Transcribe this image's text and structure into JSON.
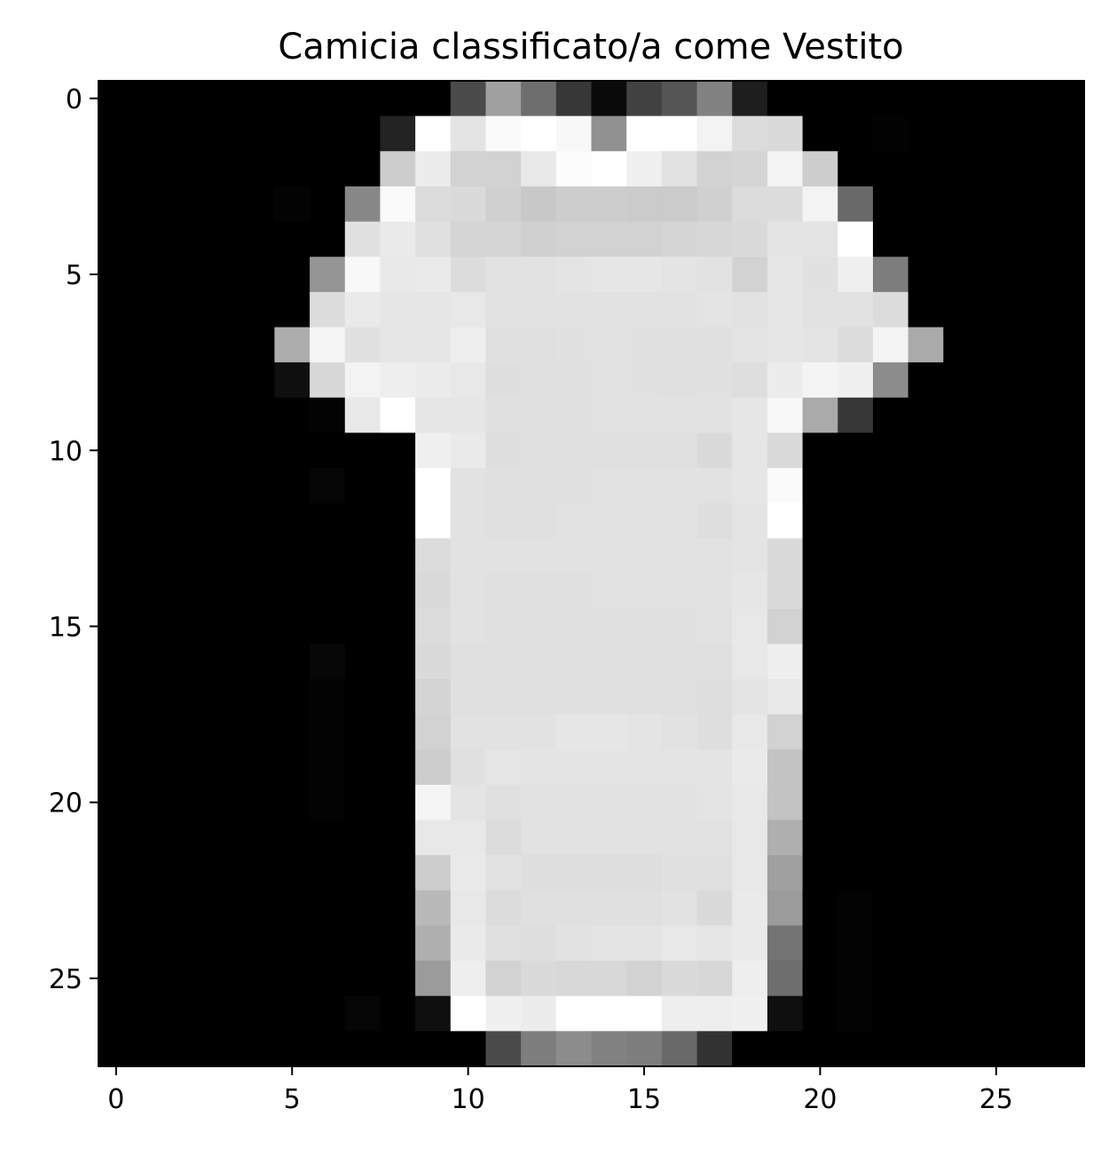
{
  "chart_data": {
    "type": "heatmap",
    "title": "Camicia classificato/a come Vestito",
    "xlabel": "",
    "ylabel": "",
    "colormap": "gray",
    "value_range": [
      0,
      255
    ],
    "grid": false,
    "x_ticks": [
      "0",
      "5",
      "10",
      "15",
      "20",
      "25"
    ],
    "y_ticks": [
      "0",
      "5",
      "10",
      "15",
      "20",
      "25"
    ],
    "xlim": [
      -0.5,
      27.5
    ],
    "ylim": [
      27.5,
      -0.5
    ],
    "pixels": [
      [
        0,
        0,
        0,
        0,
        0,
        0,
        0,
        0,
        0,
        0,
        75,
        160,
        110,
        55,
        10,
        65,
        85,
        130,
        30,
        0,
        0,
        0,
        0,
        0,
        0,
        0,
        0,
        0
      ],
      [
        0,
        0,
        0,
        0,
        0,
        0,
        0,
        0,
        35,
        255,
        228,
        250,
        255,
        248,
        145,
        255,
        255,
        243,
        220,
        218,
        0,
        0,
        2,
        0,
        0,
        0,
        0,
        0
      ],
      [
        0,
        0,
        0,
        0,
        0,
        0,
        0,
        0,
        205,
        236,
        210,
        210,
        232,
        252,
        255,
        240,
        226,
        210,
        213,
        243,
        205,
        0,
        0,
        0,
        0,
        0,
        0,
        0
      ],
      [
        0,
        0,
        0,
        0,
        0,
        3,
        0,
        135,
        250,
        220,
        218,
        208,
        200,
        205,
        205,
        203,
        203,
        208,
        220,
        220,
        243,
        105,
        0,
        0,
        0,
        0,
        0,
        0
      ],
      [
        0,
        0,
        0,
        0,
        0,
        0,
        0,
        225,
        234,
        225,
        213,
        213,
        208,
        210,
        210,
        210,
        213,
        215,
        218,
        228,
        228,
        255,
        0,
        0,
        0,
        0,
        0,
        0
      ],
      [
        0,
        0,
        0,
        0,
        0,
        0,
        148,
        248,
        232,
        234,
        220,
        226,
        226,
        228,
        230,
        230,
        228,
        226,
        210,
        230,
        225,
        240,
        125,
        0,
        0,
        0,
        0,
        0
      ],
      [
        0,
        0,
        0,
        0,
        0,
        0,
        220,
        234,
        230,
        230,
        232,
        226,
        226,
        226,
        226,
        226,
        226,
        228,
        226,
        230,
        226,
        226,
        220,
        0,
        0,
        0,
        0,
        0
      ],
      [
        0,
        0,
        0,
        0,
        0,
        173,
        245,
        225,
        230,
        230,
        238,
        224,
        224,
        225,
        226,
        225,
        224,
        224,
        228,
        230,
        228,
        220,
        244,
        170,
        0,
        0,
        0,
        0
      ],
      [
        0,
        0,
        0,
        0,
        0,
        15,
        215,
        243,
        238,
        236,
        232,
        222,
        224,
        224,
        226,
        225,
        224,
        225,
        222,
        236,
        244,
        240,
        140,
        0,
        0,
        0,
        0,
        0
      ],
      [
        0,
        0,
        0,
        0,
        0,
        0,
        3,
        232,
        255,
        230,
        230,
        224,
        224,
        224,
        226,
        226,
        226,
        226,
        230,
        248,
        170,
        55,
        0,
        0,
        0,
        0,
        0,
        0
      ],
      [
        0,
        0,
        0,
        0,
        0,
        0,
        0,
        0,
        0,
        240,
        234,
        222,
        224,
        224,
        224,
        224,
        224,
        218,
        230,
        218,
        0,
        0,
        0,
        0,
        0,
        0,
        0,
        0
      ],
      [
        0,
        0,
        0,
        0,
        0,
        0,
        5,
        0,
        0,
        255,
        226,
        224,
        224,
        224,
        226,
        226,
        226,
        226,
        230,
        250,
        0,
        0,
        0,
        0,
        0,
        0,
        0,
        0
      ],
      [
        0,
        0,
        0,
        0,
        0,
        0,
        0,
        0,
        0,
        255,
        226,
        224,
        224,
        226,
        226,
        226,
        226,
        222,
        228,
        255,
        0,
        0,
        0,
        0,
        0,
        0,
        0,
        0
      ],
      [
        0,
        0,
        0,
        0,
        0,
        0,
        0,
        0,
        0,
        220,
        226,
        226,
        226,
        226,
        226,
        226,
        226,
        226,
        228,
        218,
        0,
        0,
        0,
        0,
        0,
        0,
        0,
        0
      ],
      [
        0,
        0,
        0,
        0,
        0,
        0,
        0,
        0,
        0,
        218,
        226,
        224,
        224,
        224,
        226,
        226,
        226,
        226,
        230,
        218,
        0,
        0,
        0,
        0,
        0,
        0,
        0,
        0
      ],
      [
        0,
        0,
        0,
        0,
        0,
        0,
        0,
        0,
        0,
        220,
        226,
        224,
        224,
        224,
        224,
        224,
        224,
        226,
        232,
        210,
        0,
        0,
        0,
        0,
        0,
        0,
        0,
        0
      ],
      [
        0,
        0,
        0,
        0,
        0,
        0,
        7,
        0,
        0,
        218,
        224,
        224,
        224,
        224,
        224,
        224,
        224,
        224,
        232,
        238,
        0,
        0,
        0,
        0,
        0,
        0,
        0,
        0
      ],
      [
        0,
        0,
        0,
        0,
        0,
        0,
        3,
        0,
        0,
        212,
        224,
        224,
        224,
        224,
        224,
        224,
        224,
        222,
        228,
        232,
        0,
        0,
        0,
        0,
        0,
        0,
        0,
        0
      ],
      [
        0,
        0,
        0,
        0,
        0,
        0,
        3,
        0,
        0,
        210,
        226,
        226,
        226,
        230,
        230,
        228,
        226,
        222,
        232,
        210,
        0,
        0,
        0,
        0,
        0,
        0,
        0,
        0
      ],
      [
        0,
        0,
        0,
        0,
        0,
        0,
        3,
        0,
        0,
        205,
        224,
        230,
        228,
        228,
        228,
        228,
        228,
        228,
        234,
        195,
        0,
        0,
        0,
        0,
        0,
        0,
        0,
        0
      ],
      [
        0,
        0,
        0,
        0,
        0,
        0,
        3,
        0,
        0,
        245,
        228,
        224,
        226,
        226,
        226,
        226,
        226,
        228,
        232,
        195,
        0,
        0,
        0,
        0,
        0,
        0,
        0,
        0
      ],
      [
        0,
        0,
        0,
        0,
        0,
        0,
        0,
        0,
        0,
        232,
        232,
        220,
        226,
        226,
        226,
        226,
        226,
        226,
        232,
        175,
        0,
        0,
        0,
        0,
        0,
        0,
        0,
        0
      ],
      [
        0,
        0,
        0,
        0,
        0,
        0,
        0,
        0,
        0,
        205,
        234,
        226,
        222,
        222,
        222,
        222,
        224,
        224,
        232,
        160,
        0,
        0,
        0,
        0,
        0,
        0,
        0,
        0
      ],
      [
        0,
        0,
        0,
        0,
        0,
        0,
        0,
        0,
        0,
        185,
        232,
        220,
        224,
        224,
        224,
        224,
        226,
        218,
        234,
        155,
        0,
        3,
        0,
        0,
        0,
        0,
        0,
        0
      ],
      [
        0,
        0,
        0,
        0,
        0,
        0,
        0,
        0,
        0,
        175,
        234,
        224,
        222,
        226,
        228,
        228,
        232,
        230,
        234,
        115,
        0,
        3,
        0,
        0,
        0,
        0,
        0,
        0
      ],
      [
        0,
        0,
        0,
        0,
        0,
        0,
        0,
        0,
        0,
        155,
        238,
        210,
        218,
        216,
        216,
        210,
        218,
        215,
        238,
        110,
        0,
        3,
        0,
        0,
        0,
        0,
        0,
        0
      ],
      [
        0,
        0,
        0,
        0,
        0,
        0,
        0,
        5,
        0,
        15,
        255,
        240,
        236,
        254,
        255,
        255,
        238,
        238,
        240,
        15,
        0,
        3,
        0,
        0,
        0,
        0,
        0,
        0
      ],
      [
        0,
        0,
        0,
        0,
        0,
        0,
        0,
        0,
        0,
        0,
        0,
        75,
        125,
        140,
        130,
        125,
        105,
        50,
        0,
        0,
        0,
        0,
        0,
        0,
        0,
        0,
        0,
        0
      ]
    ]
  }
}
